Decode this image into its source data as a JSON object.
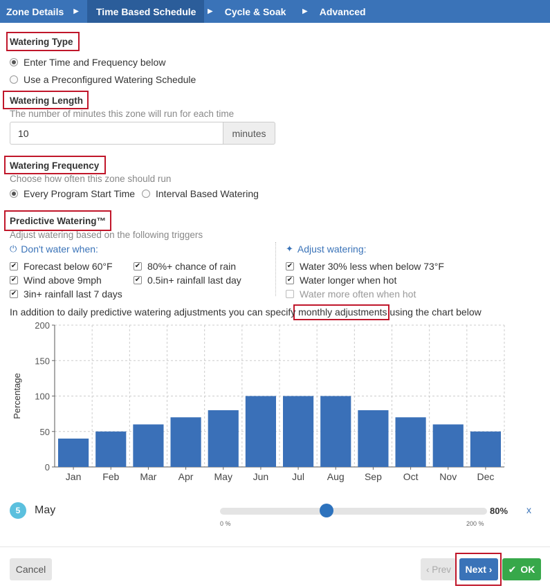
{
  "tabs": [
    {
      "label": "Zone Details"
    },
    {
      "label": "Time Based Schedule"
    },
    {
      "label": "Cycle & Soak"
    },
    {
      "label": "Advanced"
    }
  ],
  "watering_type": {
    "heading": "Watering Type",
    "options": [
      "Enter Time and Frequency below",
      "Use a Preconfigured Watering Schedule"
    ],
    "selected": 0
  },
  "watering_length": {
    "heading": "Watering Length",
    "help": "The number of minutes this zone will run for each time",
    "value": "10",
    "unit": "minutes"
  },
  "watering_frequency": {
    "heading": "Watering Frequency",
    "help": "Choose how often this zone should run",
    "options": [
      "Every Program Start Time",
      "Interval Based Watering"
    ],
    "selected": 0
  },
  "predictive": {
    "heading": "Predictive Watering™",
    "help": "Adjust watering based on the following triggers",
    "dont_water_title": "Don't water when:",
    "dont_water": [
      {
        "label": "Forecast below 60°F",
        "checked": true
      },
      {
        "label": "80%+ chance of rain",
        "checked": true
      },
      {
        "label": "Wind above 9mph",
        "checked": true
      },
      {
        "label": "0.5in+ rainfall last day",
        "checked": true
      },
      {
        "label": "3in+ rainfall last 7 days",
        "checked": true
      }
    ],
    "adjust_title": "Adjust watering:",
    "adjust": [
      {
        "label": "Water 30% less when below 73°F",
        "checked": true
      },
      {
        "label": "Water longer when hot",
        "checked": true
      },
      {
        "label": "Water more often when hot",
        "checked": false
      }
    ]
  },
  "monthly_text": {
    "before": "In addition to daily predictive watering adjustments you can specify ",
    "highlight": "monthly adjustments",
    "after": " using the chart below"
  },
  "chart_data": {
    "type": "bar",
    "categories": [
      "Jan",
      "Feb",
      "Mar",
      "Apr",
      "May",
      "Jun",
      "Jul",
      "Aug",
      "Sep",
      "Oct",
      "Nov",
      "Dec"
    ],
    "values": [
      40,
      50,
      60,
      70,
      80,
      100,
      100,
      100,
      80,
      70,
      60,
      50
    ],
    "ylabel": "Percentage",
    "ylim": [
      0,
      200
    ],
    "yticks": [
      0,
      50,
      100,
      150,
      200
    ],
    "grid": true,
    "color": "#3a70b8"
  },
  "selected_month": {
    "number": "5",
    "name": "May",
    "value": 80,
    "value_label": "80%",
    "min_label": "0 %",
    "max_label": "200 %",
    "max": 200,
    "remove_label": "x"
  },
  "footer": {
    "cancel": "Cancel",
    "prev": "‹ Prev",
    "next": "Next ›",
    "ok": "OK"
  },
  "colors": {
    "nav": "#3a73b8",
    "highlight_box": "#c0162a",
    "ok": "#37a84a",
    "bar": "#3a70b8"
  }
}
